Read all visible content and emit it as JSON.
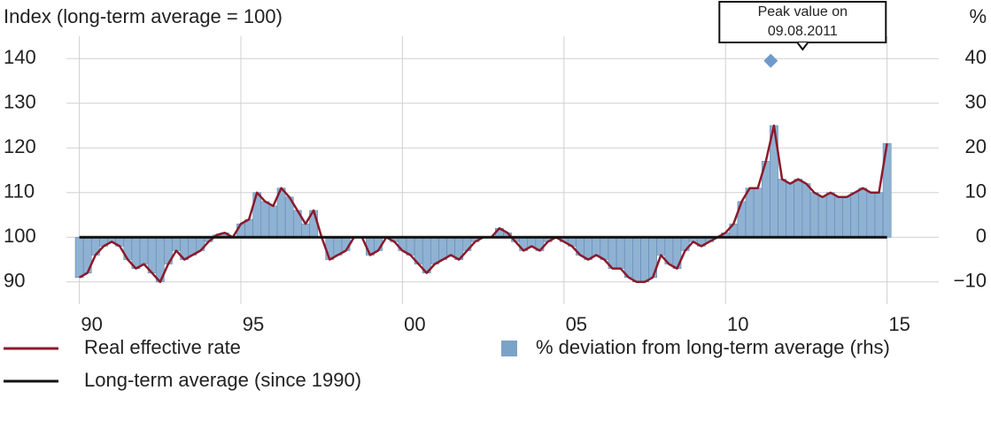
{
  "chart_data": {
    "type": "line",
    "y_label": "Index (long-term average = 100)",
    "y2_label": "%",
    "x": [
      1990,
      1990.25,
      1990.5,
      1990.75,
      1991,
      1991.25,
      1991.5,
      1991.75,
      1992,
      1992.25,
      1992.5,
      1992.75,
      1993,
      1993.25,
      1993.5,
      1993.75,
      1994,
      1994.25,
      1994.5,
      1994.75,
      1995,
      1995.25,
      1995.5,
      1995.75,
      1996,
      1996.25,
      1996.5,
      1996.75,
      1997,
      1997.25,
      1997.5,
      1997.75,
      1998,
      1998.25,
      1998.5,
      1998.75,
      1999,
      1999.25,
      1999.5,
      1999.75,
      2000,
      2000.25,
      2000.5,
      2000.75,
      2001,
      2001.25,
      2001.5,
      2001.75,
      2002,
      2002.25,
      2002.5,
      2002.75,
      2003,
      2003.25,
      2003.5,
      2003.75,
      2004,
      2004.25,
      2004.5,
      2004.75,
      2005,
      2005.25,
      2005.5,
      2005.75,
      2006,
      2006.25,
      2006.5,
      2006.75,
      2007,
      2007.25,
      2007.5,
      2007.75,
      2008,
      2008.25,
      2008.5,
      2008.75,
      2009,
      2009.25,
      2009.5,
      2009.75,
      2010,
      2010.25,
      2010.5,
      2010.75,
      2011,
      2011.25,
      2011.5,
      2011.75,
      2012,
      2012.25,
      2012.5,
      2012.75,
      2013,
      2013.25,
      2013.5,
      2013.75,
      2014,
      2014.25,
      2014.5,
      2014.75,
      2015
    ],
    "series": [
      {
        "name": "Real effective rate",
        "kind": "line",
        "color": "#8b1a2b",
        "values": [
          91,
          92,
          96,
          98,
          99,
          98,
          95,
          93,
          94,
          92,
          90,
          94,
          97,
          95,
          96,
          97,
          99,
          100.5,
          101,
          100,
          103,
          104,
          110,
          108,
          107,
          111,
          109,
          106,
          103,
          106,
          100,
          95,
          96,
          97,
          100,
          100,
          96,
          97,
          100,
          99,
          97,
          96,
          94,
          92,
          94,
          95,
          96,
          95,
          97,
          99,
          100,
          100,
          102,
          101,
          99,
          97,
          98,
          97,
          99,
          100,
          99,
          98,
          96,
          95,
          96,
          95,
          93,
          93,
          91,
          90,
          90,
          91,
          96,
          94,
          93,
          97,
          99,
          98,
          99,
          100,
          101,
          103,
          108,
          111,
          111,
          117,
          125,
          113,
          112,
          113,
          112,
          110,
          109,
          110,
          109,
          109,
          110,
          111,
          110,
          110,
          121
        ]
      },
      {
        "name": "% deviation from long-term average (rhs)",
        "kind": "bar",
        "axis": "y2",
        "color": "#8fb2d3",
        "values": [
          -9,
          -8,
          -4,
          -2,
          -1,
          -2,
          -5,
          -7,
          -6,
          -8,
          -10,
          -6,
          -3,
          -5,
          -4,
          -3,
          -1,
          0.5,
          1,
          0,
          3,
          4,
          10,
          8,
          7,
          11,
          9,
          6,
          3,
          6,
          0,
          -5,
          -4,
          -3,
          0,
          0,
          -4,
          -3,
          0,
          -1,
          -3,
          -4,
          -6,
          -8,
          -6,
          -5,
          -4,
          -5,
          -3,
          -1,
          0,
          0,
          2,
          1,
          -1,
          -3,
          -2,
          -3,
          -1,
          0,
          -1,
          -2,
          -4,
          -5,
          -4,
          -5,
          -7,
          -7,
          -9,
          -10,
          -10,
          -9,
          -4,
          -6,
          -7,
          -3,
          -1,
          -2,
          -1,
          0,
          1,
          3,
          8,
          11,
          11,
          17,
          25,
          13,
          12,
          13,
          12,
          10,
          9,
          10,
          9,
          9,
          10,
          11,
          10,
          10,
          21
        ]
      },
      {
        "name": "Long-term average (since 1990)",
        "kind": "line",
        "color": "#111111",
        "x": [
          1990,
          2015
        ],
        "values": [
          100,
          100
        ]
      }
    ],
    "annotation": {
      "lines": [
        "Peak value on",
        "09.08.2011"
      ],
      "x": 2011.4,
      "value": 39.5,
      "axis": "y2",
      "color": "#6f9acb"
    },
    "xlim": [
      1989.6,
      2016.6
    ],
    "xticks": [
      {
        "value": 1990,
        "label": "90"
      },
      {
        "value": 1995,
        "label": "95"
      },
      {
        "value": 2000,
        "label": "00"
      },
      {
        "value": 2005,
        "label": "05"
      },
      {
        "value": 2010,
        "label": "10"
      },
      {
        "value": 2015,
        "label": "15"
      }
    ],
    "ylim": [
      85,
      145
    ],
    "yticks": [
      90,
      100,
      110,
      120,
      130,
      140
    ],
    "y2lim": [
      -15,
      45
    ],
    "y2ticks": [
      {
        "value": -10,
        "label": "−10"
      },
      0,
      10,
      20,
      30,
      40
    ],
    "grid": true
  }
}
